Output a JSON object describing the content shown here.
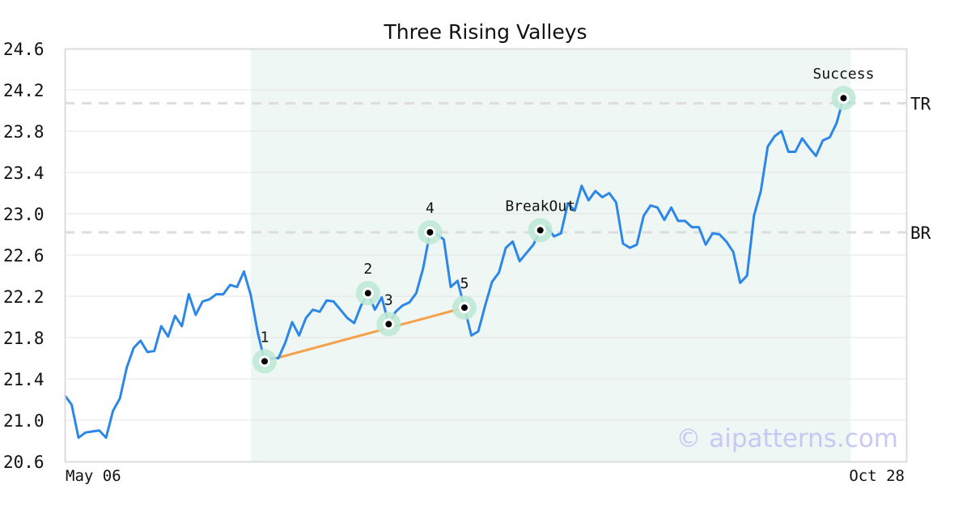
{
  "chart_data": {
    "type": "line",
    "title": "Three Rising Valleys",
    "xlabel": "",
    "ylabel": "",
    "ylim": [
      20.6,
      24.6
    ],
    "yticks": [
      "20.6",
      "21.0",
      "21.4",
      "21.8",
      "22.2",
      "22.6",
      "23.0",
      "23.4",
      "23.8",
      "24.2",
      "24.6"
    ],
    "x_tick_labels": [
      "May 06",
      "Oct 28"
    ],
    "grid": true,
    "values": [
      21.24,
      21.15,
      20.83,
      20.88,
      20.89,
      20.9,
      20.83,
      21.09,
      21.21,
      21.51,
      21.7,
      21.77,
      21.66,
      21.67,
      21.91,
      21.81,
      22.01,
      21.91,
      22.22,
      22.02,
      22.15,
      22.17,
      22.22,
      22.22,
      22.31,
      22.29,
      22.44,
      22.21,
      21.85,
      21.57,
      21.6,
      21.6,
      21.75,
      21.95,
      21.82,
      21.99,
      22.07,
      22.05,
      22.16,
      22.15,
      22.07,
      21.99,
      21.94,
      22.11,
      22.23,
      22.07,
      22.19,
      21.93,
      22.05,
      22.11,
      22.14,
      22.23,
      22.47,
      22.82,
      22.8,
      22.75,
      22.29,
      22.35,
      22.09,
      21.82,
      21.86,
      22.11,
      22.34,
      22.43,
      22.67,
      22.73,
      22.54,
      22.62,
      22.7,
      22.84,
      22.87,
      22.78,
      22.81,
      23.1,
      23.03,
      23.27,
      23.13,
      23.22,
      23.16,
      23.2,
      23.11,
      22.71,
      22.67,
      22.7,
      22.98,
      23.08,
      23.06,
      22.94,
      23.06,
      22.93,
      22.93,
      22.87,
      22.87,
      22.7,
      22.81,
      22.8,
      22.73,
      22.63,
      22.33,
      22.4,
      22.98,
      23.22,
      23.65,
      23.75,
      23.8,
      23.6,
      23.6,
      23.73,
      23.64,
      23.56,
      23.71,
      23.74,
      23.88,
      24.12,
      24.07
    ],
    "pattern_region_start_index": 27,
    "levels": [
      {
        "label": "TR",
        "value": 24.07
      },
      {
        "label": "BR",
        "value": 22.82
      }
    ],
    "markers": [
      {
        "label": "1",
        "index": 29
      },
      {
        "label": "2",
        "index": 44
      },
      {
        "label": "3",
        "index": 47
      },
      {
        "label": "4",
        "index": 53
      },
      {
        "label": "5",
        "index": 58
      },
      {
        "label": "BreakOut",
        "index": 69
      },
      {
        "label": "Success",
        "index": 113
      }
    ],
    "trendline_marker_labels": [
      "1",
      "3",
      "5"
    ],
    "watermark": "© aipatterns.com",
    "colors": {
      "line": "#2d87e8",
      "trendline": "#f5a04a",
      "marker_halo": "#bfe8d6",
      "region": "#eef7f3",
      "level": "#dddddd",
      "watermark": "#c8c8f5"
    }
  }
}
